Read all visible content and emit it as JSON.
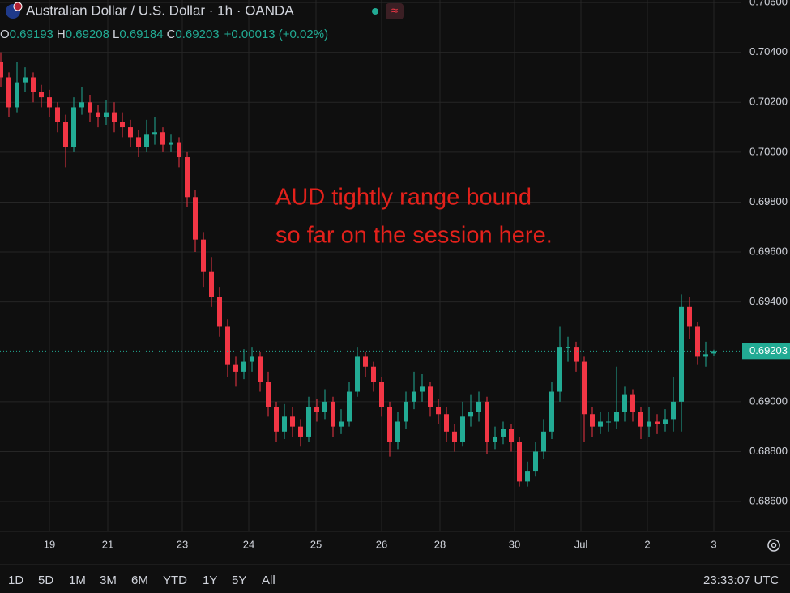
{
  "header": {
    "symbol": "Australian Dollar / U.S. Dollar · 1h · OANDA",
    "ohlc_labels": [
      "O",
      "H",
      "L",
      "C"
    ],
    "change": "+0.00013 (+0.02%)"
  },
  "chart_data": {
    "type": "candlestick",
    "open": [
      0.7036,
      0.703,
      0.7018,
      0.7028,
      0.703,
      0.7024,
      0.7022,
      0.7018,
      0.7012,
      0.7002,
      0.7018,
      0.702,
      0.7016,
      0.7014,
      0.7016,
      0.7012,
      0.701,
      0.7006,
      0.7002,
      0.7007,
      0.7008,
      0.7003,
      0.7004,
      0.6998,
      0.6982,
      0.6965,
      0.6952,
      0.6942,
      0.693,
      0.6915,
      0.6912,
      0.6916,
      0.6918,
      0.6908,
      0.6898,
      0.6888,
      0.6894,
      0.689,
      0.6886,
      0.6898,
      0.6896,
      0.69,
      0.689,
      0.6892,
      0.6904,
      0.6918,
      0.6914,
      0.6908,
      0.6898,
      0.6884,
      0.6892,
      0.69,
      0.6904,
      0.6906,
      0.6898,
      0.6895,
      0.6888,
      0.6884,
      0.6894,
      0.6896,
      0.69,
      0.6884,
      0.6886,
      0.6889,
      0.6884,
      0.6868,
      0.6872,
      0.688,
      0.6888,
      0.6904,
      0.6922,
      0.6922,
      0.6916,
      0.6895,
      0.689,
      0.6892,
      0.6892,
      0.6896,
      0.6903,
      0.6896,
      0.689,
      0.6892,
      0.6891,
      0.6893,
      0.69,
      0.6938,
      0.693,
      0.6918,
      0.69193
    ],
    "high": [
      0.704,
      0.7032,
      0.7036,
      0.7034,
      0.7032,
      0.7027,
      0.7025,
      0.702,
      0.7015,
      0.7022,
      0.7026,
      0.7023,
      0.7019,
      0.7021,
      0.702,
      0.7016,
      0.7013,
      0.7009,
      0.7013,
      0.7014,
      0.701,
      0.7007,
      0.7006,
      0.7,
      0.6985,
      0.6968,
      0.6958,
      0.6946,
      0.6933,
      0.6918,
      0.6921,
      0.6922,
      0.692,
      0.6912,
      0.69,
      0.6899,
      0.6898,
      0.6893,
      0.6902,
      0.6901,
      0.6905,
      0.6902,
      0.6897,
      0.6908,
      0.6922,
      0.692,
      0.6916,
      0.691,
      0.69,
      0.6896,
      0.6904,
      0.6912,
      0.6911,
      0.6908,
      0.6901,
      0.6898,
      0.6891,
      0.69,
      0.6903,
      0.6904,
      0.6902,
      0.689,
      0.6892,
      0.6891,
      0.6886,
      0.6876,
      0.6884,
      0.6893,
      0.6908,
      0.693,
      0.6926,
      0.6924,
      0.6918,
      0.6898,
      0.6896,
      0.6896,
      0.6914,
      0.6906,
      0.6905,
      0.6898,
      0.6898,
      0.6895,
      0.6897,
      0.691,
      0.6943,
      0.6942,
      0.6932,
      0.6924,
      0.69208
    ],
    "low": [
      0.7026,
      0.7014,
      0.7016,
      0.7024,
      0.702,
      0.7018,
      0.7014,
      0.7008,
      0.6994,
      0.7,
      0.7015,
      0.7012,
      0.701,
      0.7011,
      0.7008,
      0.7006,
      0.7002,
      0.6998,
      0.7,
      0.7003,
      0.7,
      0.7,
      0.6994,
      0.6978,
      0.696,
      0.6946,
      0.6938,
      0.6926,
      0.691,
      0.6906,
      0.6909,
      0.6912,
      0.6904,
      0.6894,
      0.6884,
      0.6885,
      0.6886,
      0.6882,
      0.6884,
      0.6892,
      0.6893,
      0.6886,
      0.6887,
      0.689,
      0.6902,
      0.691,
      0.6904,
      0.6894,
      0.6878,
      0.6881,
      0.6889,
      0.6897,
      0.69,
      0.6894,
      0.6891,
      0.6884,
      0.688,
      0.6882,
      0.689,
      0.6892,
      0.6879,
      0.6881,
      0.6883,
      0.688,
      0.6866,
      0.6866,
      0.687,
      0.6877,
      0.6885,
      0.69,
      0.6916,
      0.6912,
      0.6884,
      0.6886,
      0.6887,
      0.6888,
      0.6889,
      0.6892,
      0.6892,
      0.6885,
      0.6886,
      0.6887,
      0.6888,
      0.6888,
      0.6888,
      0.6925,
      0.6915,
      0.6914,
      0.69184
    ],
    "close": [
      0.703,
      0.7018,
      0.7028,
      0.703,
      0.7024,
      0.7022,
      0.7018,
      0.7012,
      0.7002,
      0.7018,
      0.702,
      0.7016,
      0.7014,
      0.7016,
      0.7012,
      0.701,
      0.7006,
      0.7002,
      0.7007,
      0.7008,
      0.7003,
      0.7004,
      0.6998,
      0.6982,
      0.6965,
      0.6952,
      0.6942,
      0.693,
      0.6915,
      0.6912,
      0.6916,
      0.6918,
      0.6908,
      0.6898,
      0.6888,
      0.6894,
      0.689,
      0.6886,
      0.6898,
      0.6896,
      0.69,
      0.689,
      0.6892,
      0.6904,
      0.6918,
      0.6914,
      0.6908,
      0.6898,
      0.6884,
      0.6892,
      0.69,
      0.6904,
      0.6906,
      0.6898,
      0.6895,
      0.6888,
      0.6884,
      0.6894,
      0.6896,
      0.69,
      0.6884,
      0.6886,
      0.6889,
      0.6884,
      0.6868,
      0.6872,
      0.688,
      0.6888,
      0.6904,
      0.6922,
      0.6922,
      0.6916,
      0.6895,
      0.689,
      0.6892,
      0.6892,
      0.6896,
      0.6903,
      0.6896,
      0.689,
      0.6892,
      0.6891,
      0.6893,
      0.69,
      0.6938,
      0.693,
      0.6918,
      0.6919,
      0.69203
    ],
    "up_color": "#22ab94",
    "down_color": "#f23645",
    "grid": true,
    "ylim": [
      0.6848,
      0.7061
    ],
    "yticks": [
      {
        "value": 0.706,
        "label": "0.70600"
      },
      {
        "value": 0.704,
        "label": "0.70400"
      },
      {
        "value": 0.702,
        "label": "0.70200"
      },
      {
        "value": 0.7,
        "label": "0.70000"
      },
      {
        "value": 0.698,
        "label": "0.69800"
      },
      {
        "value": 0.696,
        "label": "0.69600"
      },
      {
        "value": 0.694,
        "label": "0.69400"
      },
      {
        "value": 0.69,
        "label": "0.69000"
      },
      {
        "value": 0.688,
        "label": "0.68800"
      },
      {
        "value": 0.686,
        "label": "0.68600"
      }
    ],
    "xlim": [
      -0.1,
      91.4
    ],
    "xticks": [
      {
        "value": 6,
        "label": "19"
      },
      {
        "value": 13.2,
        "label": "21"
      },
      {
        "value": 22.4,
        "label": "23"
      },
      {
        "value": 30.6,
        "label": "24"
      },
      {
        "value": 38.9,
        "label": "25"
      },
      {
        "value": 47,
        "label": "26"
      },
      {
        "value": 54.2,
        "label": "28"
      },
      {
        "value": 63.4,
        "label": "30"
      },
      {
        "value": 71.6,
        "label": "Jul"
      },
      {
        "value": 79.8,
        "label": "2"
      },
      {
        "value": 88,
        "label": "3"
      }
    ],
    "annotation": [
      "AUD tightly range bound",
      "so far on the session here."
    ]
  },
  "toolbar": {
    "ranges": [
      "1D",
      "5D",
      "1M",
      "3M",
      "6M",
      "YTD",
      "1Y",
      "5Y",
      "All"
    ],
    "clock": "23:33:07 UTC"
  }
}
